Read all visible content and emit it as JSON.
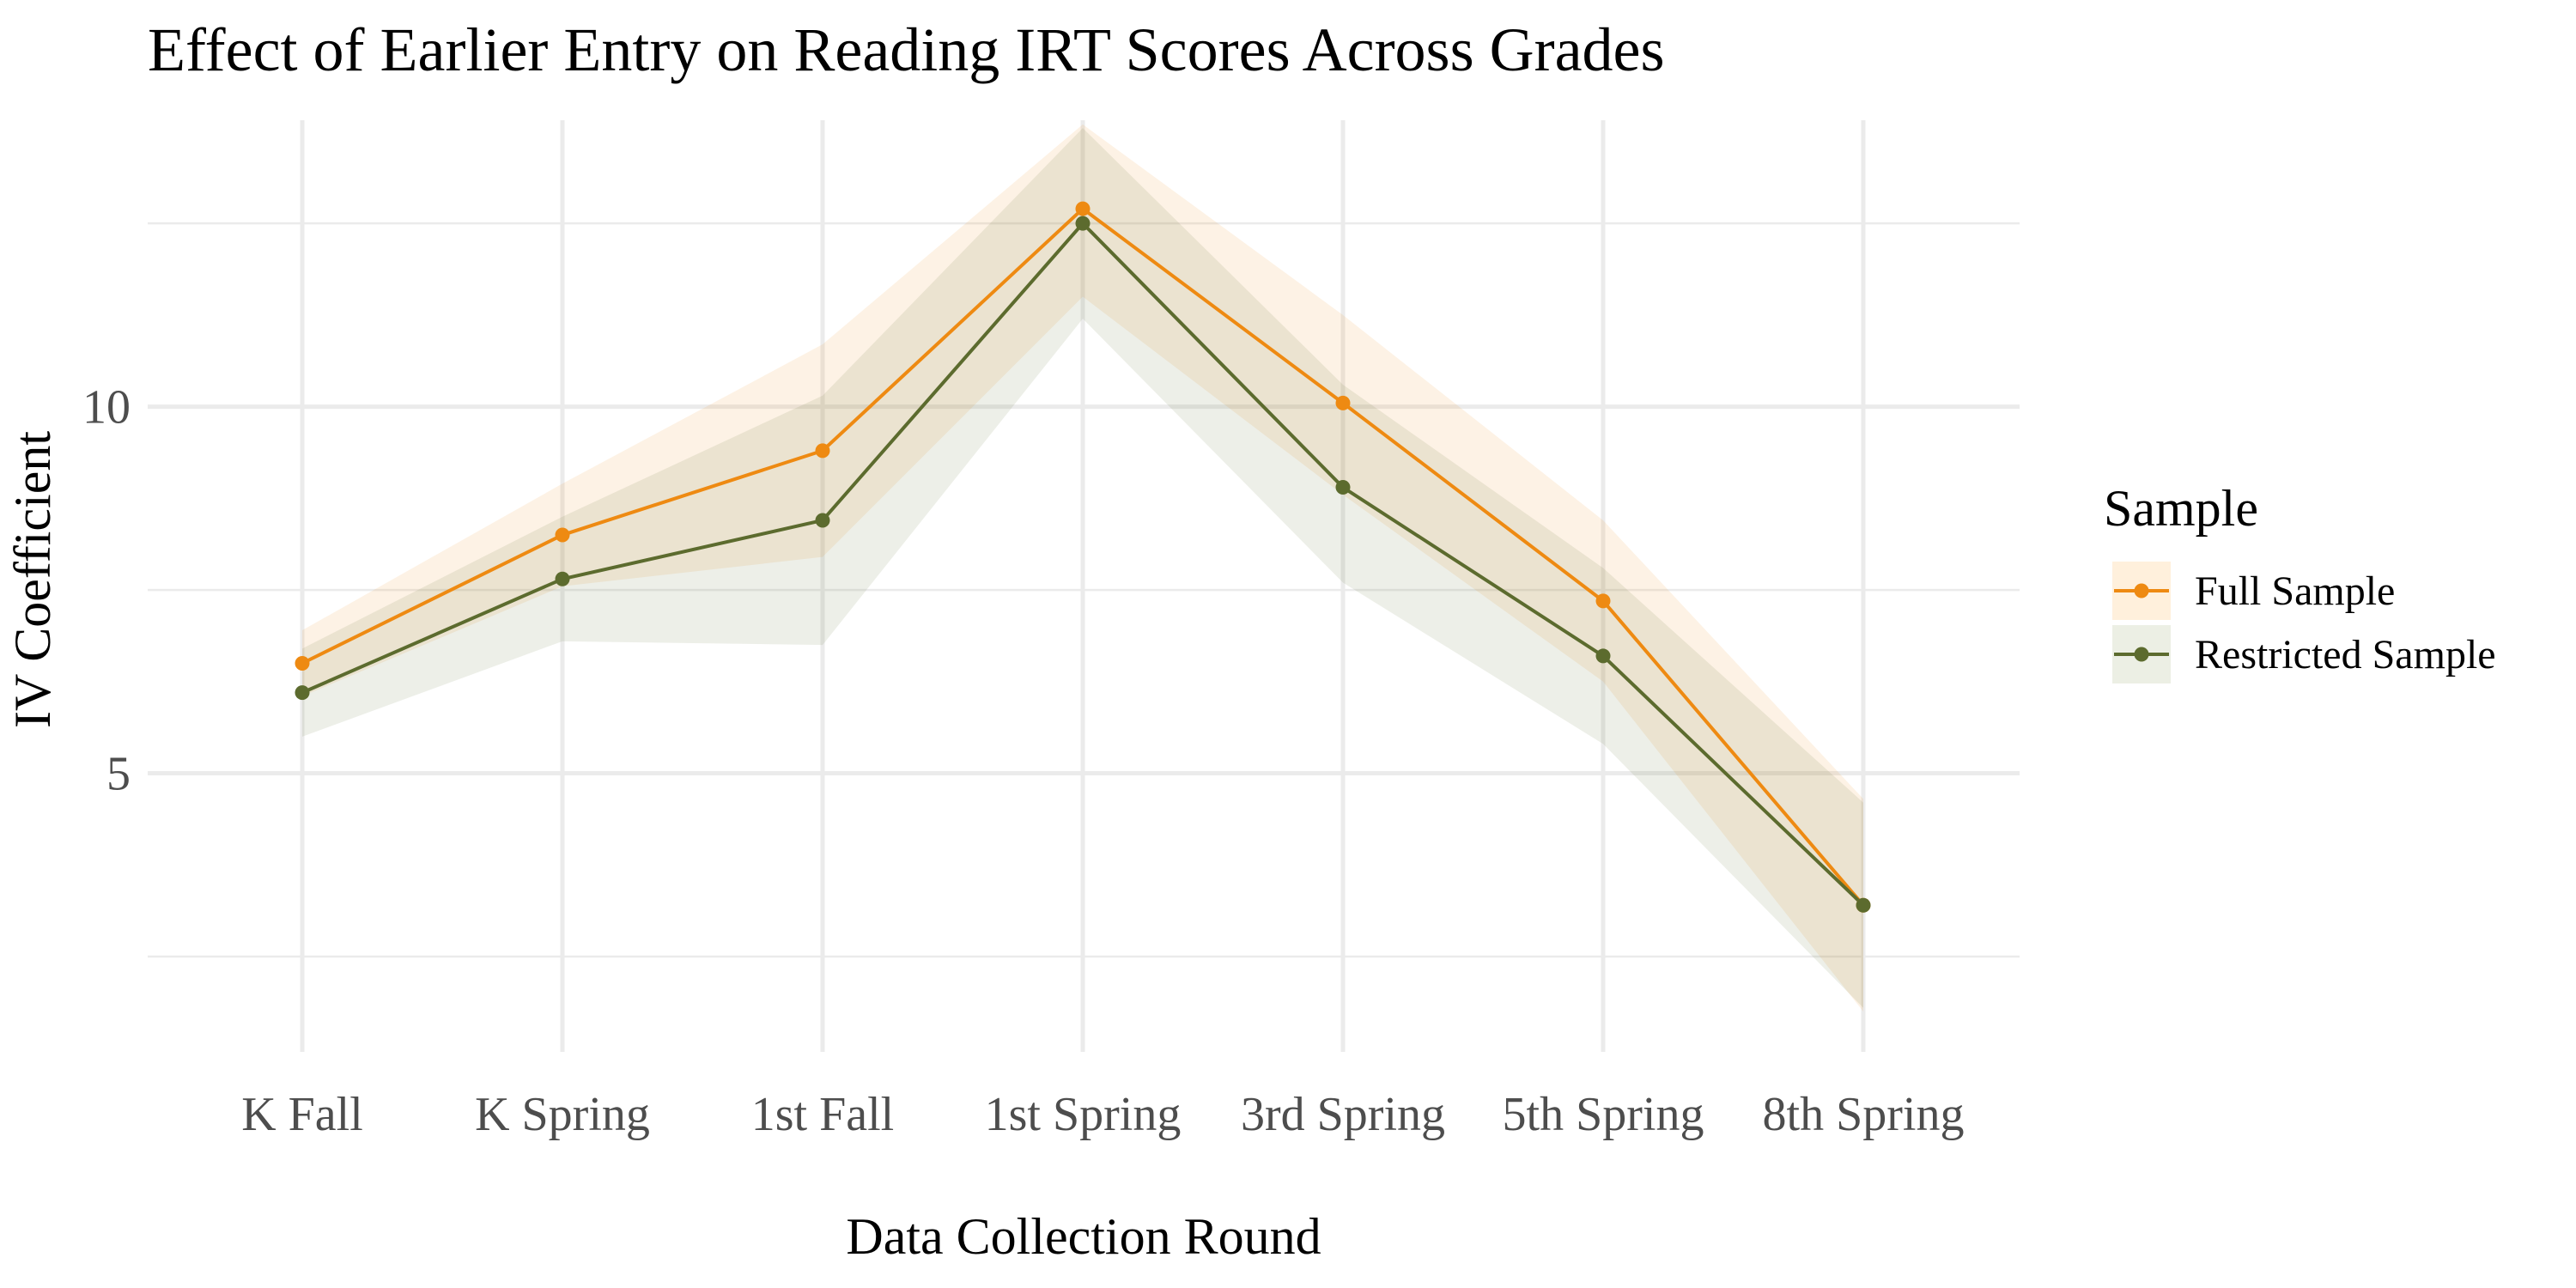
{
  "chart_data": {
    "type": "line",
    "title": "Effect of Earlier Entry on Reading IRT Scores Across Grades",
    "xlabel": "Data Collection Round",
    "ylabel": "IV Coefficient",
    "categories": [
      "K Fall",
      "K Spring",
      "1st Fall",
      "1st Spring",
      "3rd Spring",
      "5th Spring",
      "8th Spring"
    ],
    "y_ticks": [
      5,
      10
    ],
    "ylim": [
      1.2,
      14.2
    ],
    "grid": true,
    "legend": {
      "title": "Sample",
      "position": "right"
    },
    "series": [
      {
        "name": "Full Sample",
        "color": "#EE8A12",
        "ribbon_color": "#FFF0DC",
        "values": [
          6.5,
          8.25,
          9.4,
          12.7,
          10.05,
          7.35,
          3.2
        ],
        "lower": [
          6.05,
          7.55,
          7.95,
          11.5,
          8.8,
          6.25,
          1.75
        ],
        "upper": [
          6.95,
          8.95,
          10.85,
          13.85,
          11.25,
          8.45,
          4.65
        ]
      },
      {
        "name": "Restricted Sample",
        "color": "#5C6B2E",
        "ribbon_color": "#ECEFE4",
        "values": [
          6.1,
          7.65,
          8.45,
          12.5,
          8.9,
          6.6,
          3.2
        ],
        "lower": [
          5.5,
          6.8,
          6.75,
          11.2,
          7.6,
          5.4,
          1.8
        ],
        "upper": [
          6.7,
          8.5,
          10.15,
          13.8,
          10.3,
          7.8,
          4.6
        ]
      }
    ]
  }
}
